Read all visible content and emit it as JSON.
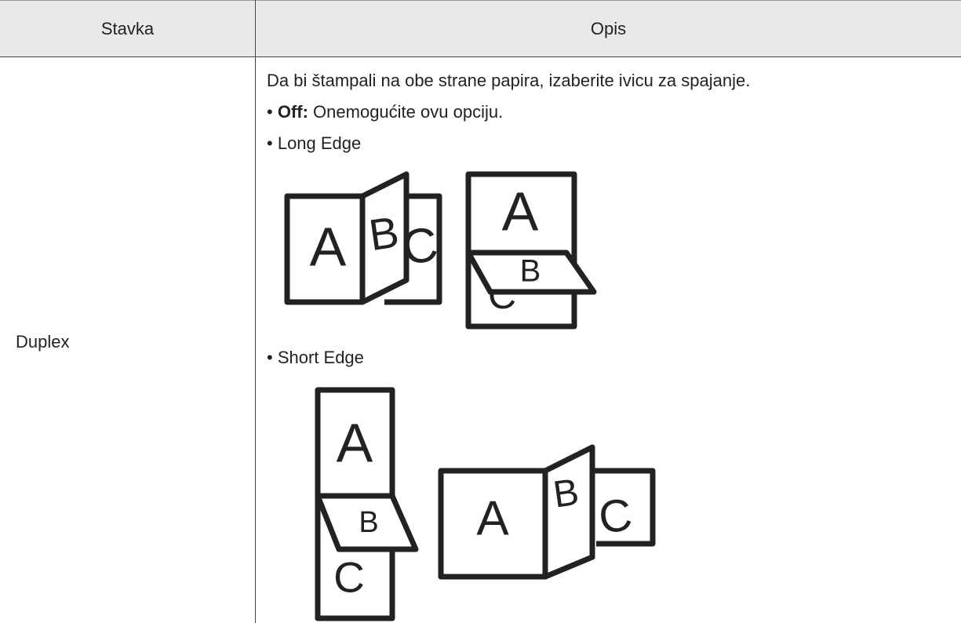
{
  "header": {
    "col1": "Stavka",
    "col2": "Opis"
  },
  "row": {
    "item": "Duplex",
    "intro": "Da bi štampali na obe strane papira, izaberite ivicu za spajanje.",
    "bullets": [
      {
        "label": "Off:",
        "text": "Onemogućite ovu opciju."
      },
      {
        "label": "Long Edge"
      },
      {
        "label": "Short Edge"
      }
    ]
  },
  "illustration_letters": [
    "A",
    "B",
    "C"
  ]
}
